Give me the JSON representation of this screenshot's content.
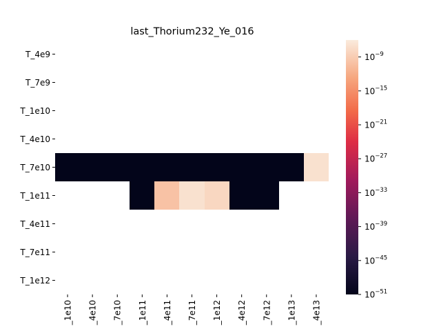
{
  "chart_data": {
    "type": "heatmap",
    "title": "last_Thorium232_Ye_016",
    "xlabel": "",
    "ylabel": "",
    "x_categories": [
      "_1e10",
      "_4e10",
      "_7e10",
      "_1e11",
      "_4e11",
      "_7e11",
      "_1e12",
      "_4e12",
      "_7e12",
      "_1e13",
      "_4e13"
    ],
    "y_categories": [
      "T_4e9",
      "T_7e9",
      "T_1e10",
      "T_4e10",
      "T_7e10",
      "T_1e11",
      "T_4e11",
      "T_7e11",
      "T_1e12"
    ],
    "color_scale": "log",
    "colormap": "rocket",
    "vmin_exp": -51,
    "vmax_exp": -6,
    "colorbar_ticks": [
      {
        "exp": -9,
        "base": "10",
        "sup": "−9"
      },
      {
        "exp": -15,
        "base": "10",
        "sup": "−15"
      },
      {
        "exp": -21,
        "base": "10",
        "sup": "−21"
      },
      {
        "exp": -27,
        "base": "10",
        "sup": "−27"
      },
      {
        "exp": -33,
        "base": "10",
        "sup": "−33"
      },
      {
        "exp": -39,
        "base": "10",
        "sup": "−39"
      },
      {
        "exp": -45,
        "base": "10",
        "sup": "−45"
      },
      {
        "exp": -51,
        "base": "10",
        "sup": "−51"
      }
    ],
    "cells": [
      {
        "row": "T_7e10",
        "col": "_1e10",
        "exp": -51
      },
      {
        "row": "T_7e10",
        "col": "_4e10",
        "exp": -51
      },
      {
        "row": "T_7e10",
        "col": "_7e10",
        "exp": -51
      },
      {
        "row": "T_7e10",
        "col": "_1e11",
        "exp": -51
      },
      {
        "row": "T_7e10",
        "col": "_4e11",
        "exp": -51
      },
      {
        "row": "T_7e10",
        "col": "_7e11",
        "exp": -51
      },
      {
        "row": "T_7e10",
        "col": "_1e12",
        "exp": -51
      },
      {
        "row": "T_7e10",
        "col": "_4e12",
        "exp": -51
      },
      {
        "row": "T_7e10",
        "col": "_7e12",
        "exp": -51
      },
      {
        "row": "T_7e10",
        "col": "_1e13",
        "exp": -51
      },
      {
        "row": "T_7e10",
        "col": "_4e13",
        "exp": -7
      },
      {
        "row": "T_1e11",
        "col": "_1e11",
        "exp": -51
      },
      {
        "row": "T_1e11",
        "col": "_4e11",
        "exp": -10
      },
      {
        "row": "T_1e11",
        "col": "_7e11",
        "exp": -7
      },
      {
        "row": "T_1e11",
        "col": "_1e12",
        "exp": -8
      },
      {
        "row": "T_1e11",
        "col": "_4e12",
        "exp": -51
      },
      {
        "row": "T_1e11",
        "col": "_7e12",
        "exp": -51
      }
    ]
  }
}
